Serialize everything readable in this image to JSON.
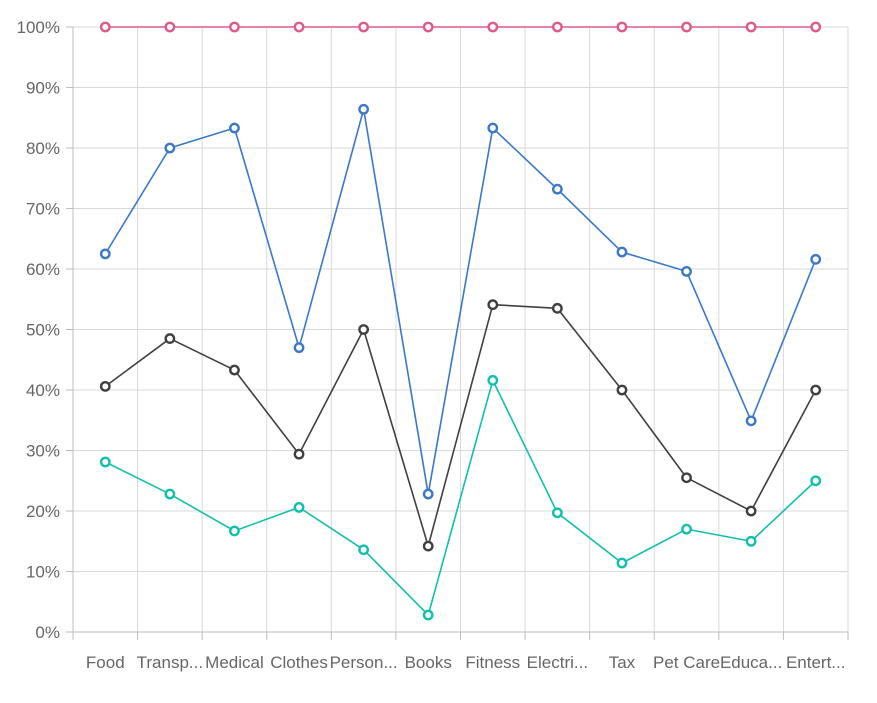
{
  "chart_data": {
    "type": "line",
    "title": "",
    "xlabel": "",
    "ylabel": "",
    "categories": [
      "Food",
      "Transp...",
      "Medical",
      "Clothes",
      "Person...",
      "Books",
      "Fitness",
      "Electri...",
      "Tax",
      "Pet Care",
      "Educa...",
      "Entert..."
    ],
    "ylim": [
      0,
      100
    ],
    "y_ticks": [
      0,
      10,
      20,
      30,
      40,
      50,
      60,
      70,
      80,
      90,
      100
    ],
    "y_tick_labels": [
      "0%",
      "10%",
      "20%",
      "30%",
      "40%",
      "50%",
      "60%",
      "70%",
      "80%",
      "90%",
      "100%"
    ],
    "grid": true,
    "legend": "none",
    "series": [
      {
        "color": "#e0598b",
        "values": [
          100,
          100,
          100,
          100,
          100,
          100,
          100,
          100,
          100,
          100,
          100,
          100
        ]
      },
      {
        "color": "#3a78c9",
        "values": [
          62.5,
          80,
          83.3,
          47,
          86.4,
          22.8,
          83.3,
          73.2,
          62.8,
          59.6,
          34.9,
          61.6
        ]
      },
      {
        "color": "#404040",
        "values": [
          40.6,
          48.5,
          43.3,
          29.4,
          50,
          14.2,
          54.1,
          53.5,
          40,
          25.5,
          20,
          40
        ]
      },
      {
        "color": "#10bfae",
        "values": [
          28.1,
          22.8,
          16.7,
          20.6,
          13.6,
          2.8,
          41.6,
          19.7,
          11.4,
          17,
          15,
          25
        ]
      }
    ]
  }
}
